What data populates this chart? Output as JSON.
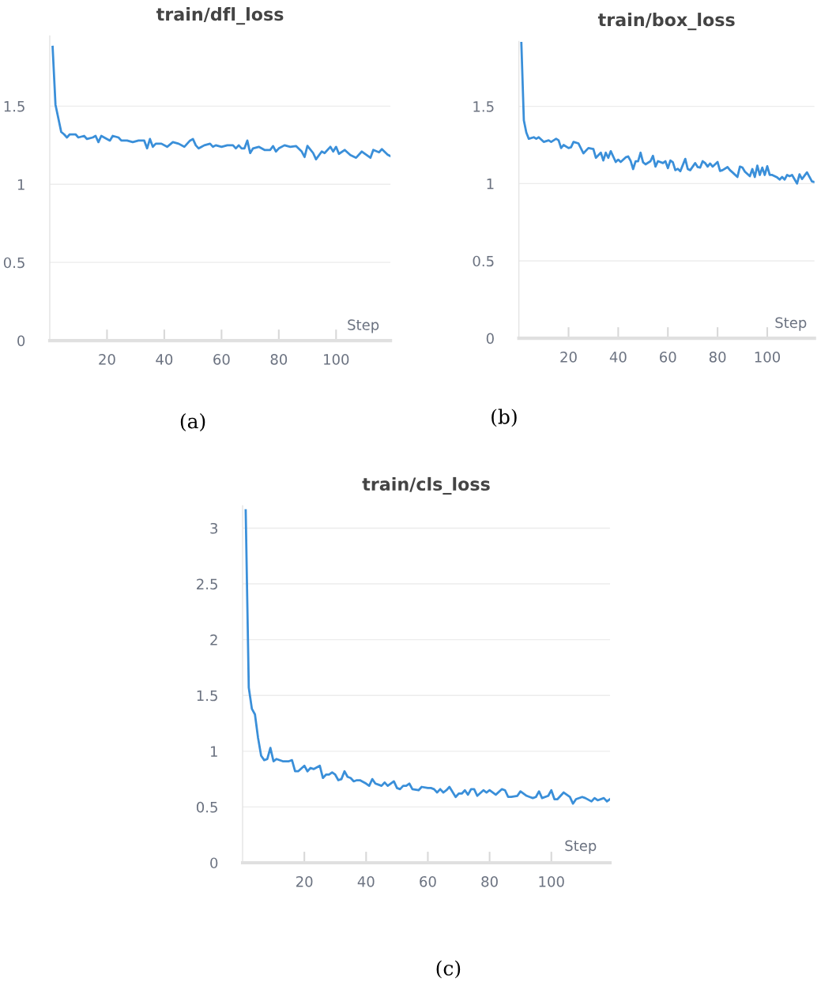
{
  "chart_data": [
    {
      "type": "line",
      "title": "train/dfl_loss",
      "xlabel": "Step",
      "annotations": [
        "(a)"
      ],
      "xlim": [
        0,
        119
      ],
      "ylim": [
        0,
        1.95
      ],
      "xticks": [
        20,
        40,
        60,
        80,
        100
      ],
      "yticks": [
        0,
        0.5,
        1,
        1.5
      ],
      "grid": "y",
      "series": [
        {
          "color": "#3a8fd9",
          "x": [
            1,
            2,
            4,
            5,
            6,
            7,
            9,
            10,
            12,
            13,
            15,
            16,
            17,
            18,
            20,
            21,
            22,
            24,
            25,
            27,
            29,
            31,
            33,
            34,
            35,
            36,
            37,
            39,
            41,
            43,
            45,
            47,
            49,
            50,
            51,
            52,
            54,
            56,
            57,
            58,
            60,
            62,
            64,
            65,
            66,
            67,
            68,
            69,
            70,
            71,
            73,
            75,
            77,
            78,
            79,
            80,
            82,
            84,
            86,
            88,
            89,
            90,
            92,
            93,
            95,
            96,
            98,
            99,
            100,
            101,
            103,
            105,
            107,
            109,
            112,
            113,
            115,
            116,
            118,
            119
          ],
          "values": [
            1.88,
            1.51,
            1.335,
            1.32,
            1.3,
            1.32,
            1.32,
            1.3,
            1.31,
            1.29,
            1.3,
            1.31,
            1.27,
            1.31,
            1.29,
            1.28,
            1.31,
            1.3,
            1.28,
            1.28,
            1.27,
            1.28,
            1.28,
            1.23,
            1.29,
            1.24,
            1.26,
            1.26,
            1.24,
            1.27,
            1.26,
            1.24,
            1.28,
            1.29,
            1.25,
            1.23,
            1.25,
            1.26,
            1.24,
            1.25,
            1.24,
            1.25,
            1.25,
            1.23,
            1.25,
            1.23,
            1.23,
            1.28,
            1.2,
            1.23,
            1.24,
            1.22,
            1.22,
            1.245,
            1.21,
            1.23,
            1.25,
            1.24,
            1.245,
            1.21,
            1.175,
            1.246,
            1.2,
            1.16,
            1.21,
            1.2,
            1.24,
            1.21,
            1.24,
            1.195,
            1.22,
            1.187,
            1.17,
            1.21,
            1.17,
            1.22,
            1.205,
            1.225,
            1.19,
            1.18
          ]
        }
      ]
    },
    {
      "type": "line",
      "title": "train/box_loss",
      "xlabel": "Step",
      "annotations": [
        "(b)"
      ],
      "xlim": [
        0,
        119
      ],
      "ylim": [
        0,
        1.92
      ],
      "xticks": [
        20,
        40,
        60,
        80,
        100
      ],
      "yticks": [
        0,
        0.5,
        1,
        1.5
      ],
      "grid": "y",
      "series": [
        {
          "color": "#3a8fd9",
          "x": [
            1,
            2,
            3,
            4,
            6,
            7,
            8,
            10,
            12,
            13,
            15,
            16,
            17,
            18,
            20,
            21,
            22,
            24,
            26,
            28,
            30,
            31,
            33,
            34,
            35,
            36,
            37,
            39,
            40,
            41,
            43,
            44,
            45,
            46,
            47,
            48,
            49,
            50,
            51,
            53,
            54,
            55,
            56,
            58,
            59,
            60,
            61,
            62,
            63,
            64,
            65,
            67,
            68,
            69,
            71,
            72,
            73,
            74,
            75,
            76,
            77,
            78,
            80,
            81,
            82,
            84,
            85,
            86,
            88,
            89,
            90,
            91,
            93,
            94,
            95,
            96,
            97,
            98,
            99,
            100,
            101,
            102,
            104,
            105,
            106,
            107,
            108,
            109,
            110,
            112,
            113,
            114,
            116,
            118,
            119
          ],
          "values": [
            1.91,
            1.41,
            1.33,
            1.29,
            1.3,
            1.29,
            1.3,
            1.27,
            1.28,
            1.27,
            1.29,
            1.28,
            1.23,
            1.25,
            1.23,
            1.235,
            1.27,
            1.26,
            1.196,
            1.23,
            1.224,
            1.167,
            1.2,
            1.15,
            1.2,
            1.167,
            1.21,
            1.14,
            1.155,
            1.14,
            1.17,
            1.176,
            1.147,
            1.094,
            1.145,
            1.145,
            1.2,
            1.138,
            1.125,
            1.145,
            1.18,
            1.11,
            1.145,
            1.133,
            1.145,
            1.1,
            1.15,
            1.138,
            1.087,
            1.096,
            1.08,
            1.16,
            1.094,
            1.087,
            1.133,
            1.107,
            1.104,
            1.145,
            1.133,
            1.11,
            1.13,
            1.11,
            1.14,
            1.082,
            1.087,
            1.107,
            1.087,
            1.073,
            1.043,
            1.11,
            1.104,
            1.078,
            1.048,
            1.094,
            1.043,
            1.116,
            1.056,
            1.104,
            1.056,
            1.113,
            1.056,
            1.056,
            1.04,
            1.026,
            1.043,
            1.026,
            1.056,
            1.048,
            1.056,
            1.0,
            1.06,
            1.03,
            1.073,
            1.014,
            1.01
          ]
        }
      ]
    },
    {
      "type": "line",
      "title": "train/cls_loss",
      "xlabel": "Step",
      "annotations": [
        "(c)"
      ],
      "xlim": [
        0,
        119
      ],
      "ylim": [
        0,
        3.2
      ],
      "xticks": [
        20,
        40,
        60,
        80,
        100
      ],
      "yticks": [
        0,
        0.5,
        1,
        1.5,
        2,
        2.5,
        3
      ],
      "grid": "y",
      "series": [
        {
          "color": "#3a8fd9",
          "x": [
            1,
            2,
            3,
            4,
            5,
            6,
            7,
            8,
            9,
            10,
            11,
            13,
            15,
            16,
            17,
            18,
            20,
            21,
            22,
            23,
            25,
            26,
            27,
            28,
            29,
            30,
            31,
            32,
            33,
            34,
            35,
            36,
            37,
            38,
            40,
            41,
            42,
            43,
            44,
            45,
            46,
            47,
            49,
            50,
            51,
            52,
            53,
            54,
            55,
            57,
            58,
            60,
            61,
            62,
            63,
            64,
            65,
            66,
            67,
            69,
            70,
            71,
            72,
            73,
            74,
            75,
            76,
            78,
            79,
            80,
            82,
            84,
            85,
            86,
            87,
            89,
            90,
            92,
            93,
            94,
            95,
            96,
            97,
            99,
            100,
            101,
            102,
            104,
            106,
            107,
            108,
            110,
            111,
            113,
            114,
            115,
            117,
            118,
            119
          ],
          "values": [
            3.16,
            1.57,
            1.38,
            1.33,
            1.12,
            0.96,
            0.92,
            0.93,
            1.03,
            0.91,
            0.93,
            0.91,
            0.91,
            0.92,
            0.82,
            0.82,
            0.87,
            0.82,
            0.85,
            0.84,
            0.87,
            0.76,
            0.79,
            0.79,
            0.81,
            0.79,
            0.74,
            0.75,
            0.82,
            0.77,
            0.76,
            0.73,
            0.74,
            0.74,
            0.71,
            0.69,
            0.75,
            0.71,
            0.7,
            0.69,
            0.72,
            0.69,
            0.73,
            0.67,
            0.66,
            0.69,
            0.69,
            0.71,
            0.66,
            0.65,
            0.68,
            0.67,
            0.67,
            0.66,
            0.63,
            0.66,
            0.63,
            0.65,
            0.68,
            0.59,
            0.62,
            0.62,
            0.65,
            0.61,
            0.66,
            0.66,
            0.6,
            0.65,
            0.63,
            0.65,
            0.61,
            0.66,
            0.65,
            0.59,
            0.59,
            0.6,
            0.64,
            0.6,
            0.59,
            0.58,
            0.59,
            0.64,
            0.58,
            0.6,
            0.65,
            0.57,
            0.57,
            0.63,
            0.59,
            0.53,
            0.57,
            0.59,
            0.58,
            0.55,
            0.58,
            0.56,
            0.58,
            0.55,
            0.57
          ]
        }
      ]
    }
  ]
}
